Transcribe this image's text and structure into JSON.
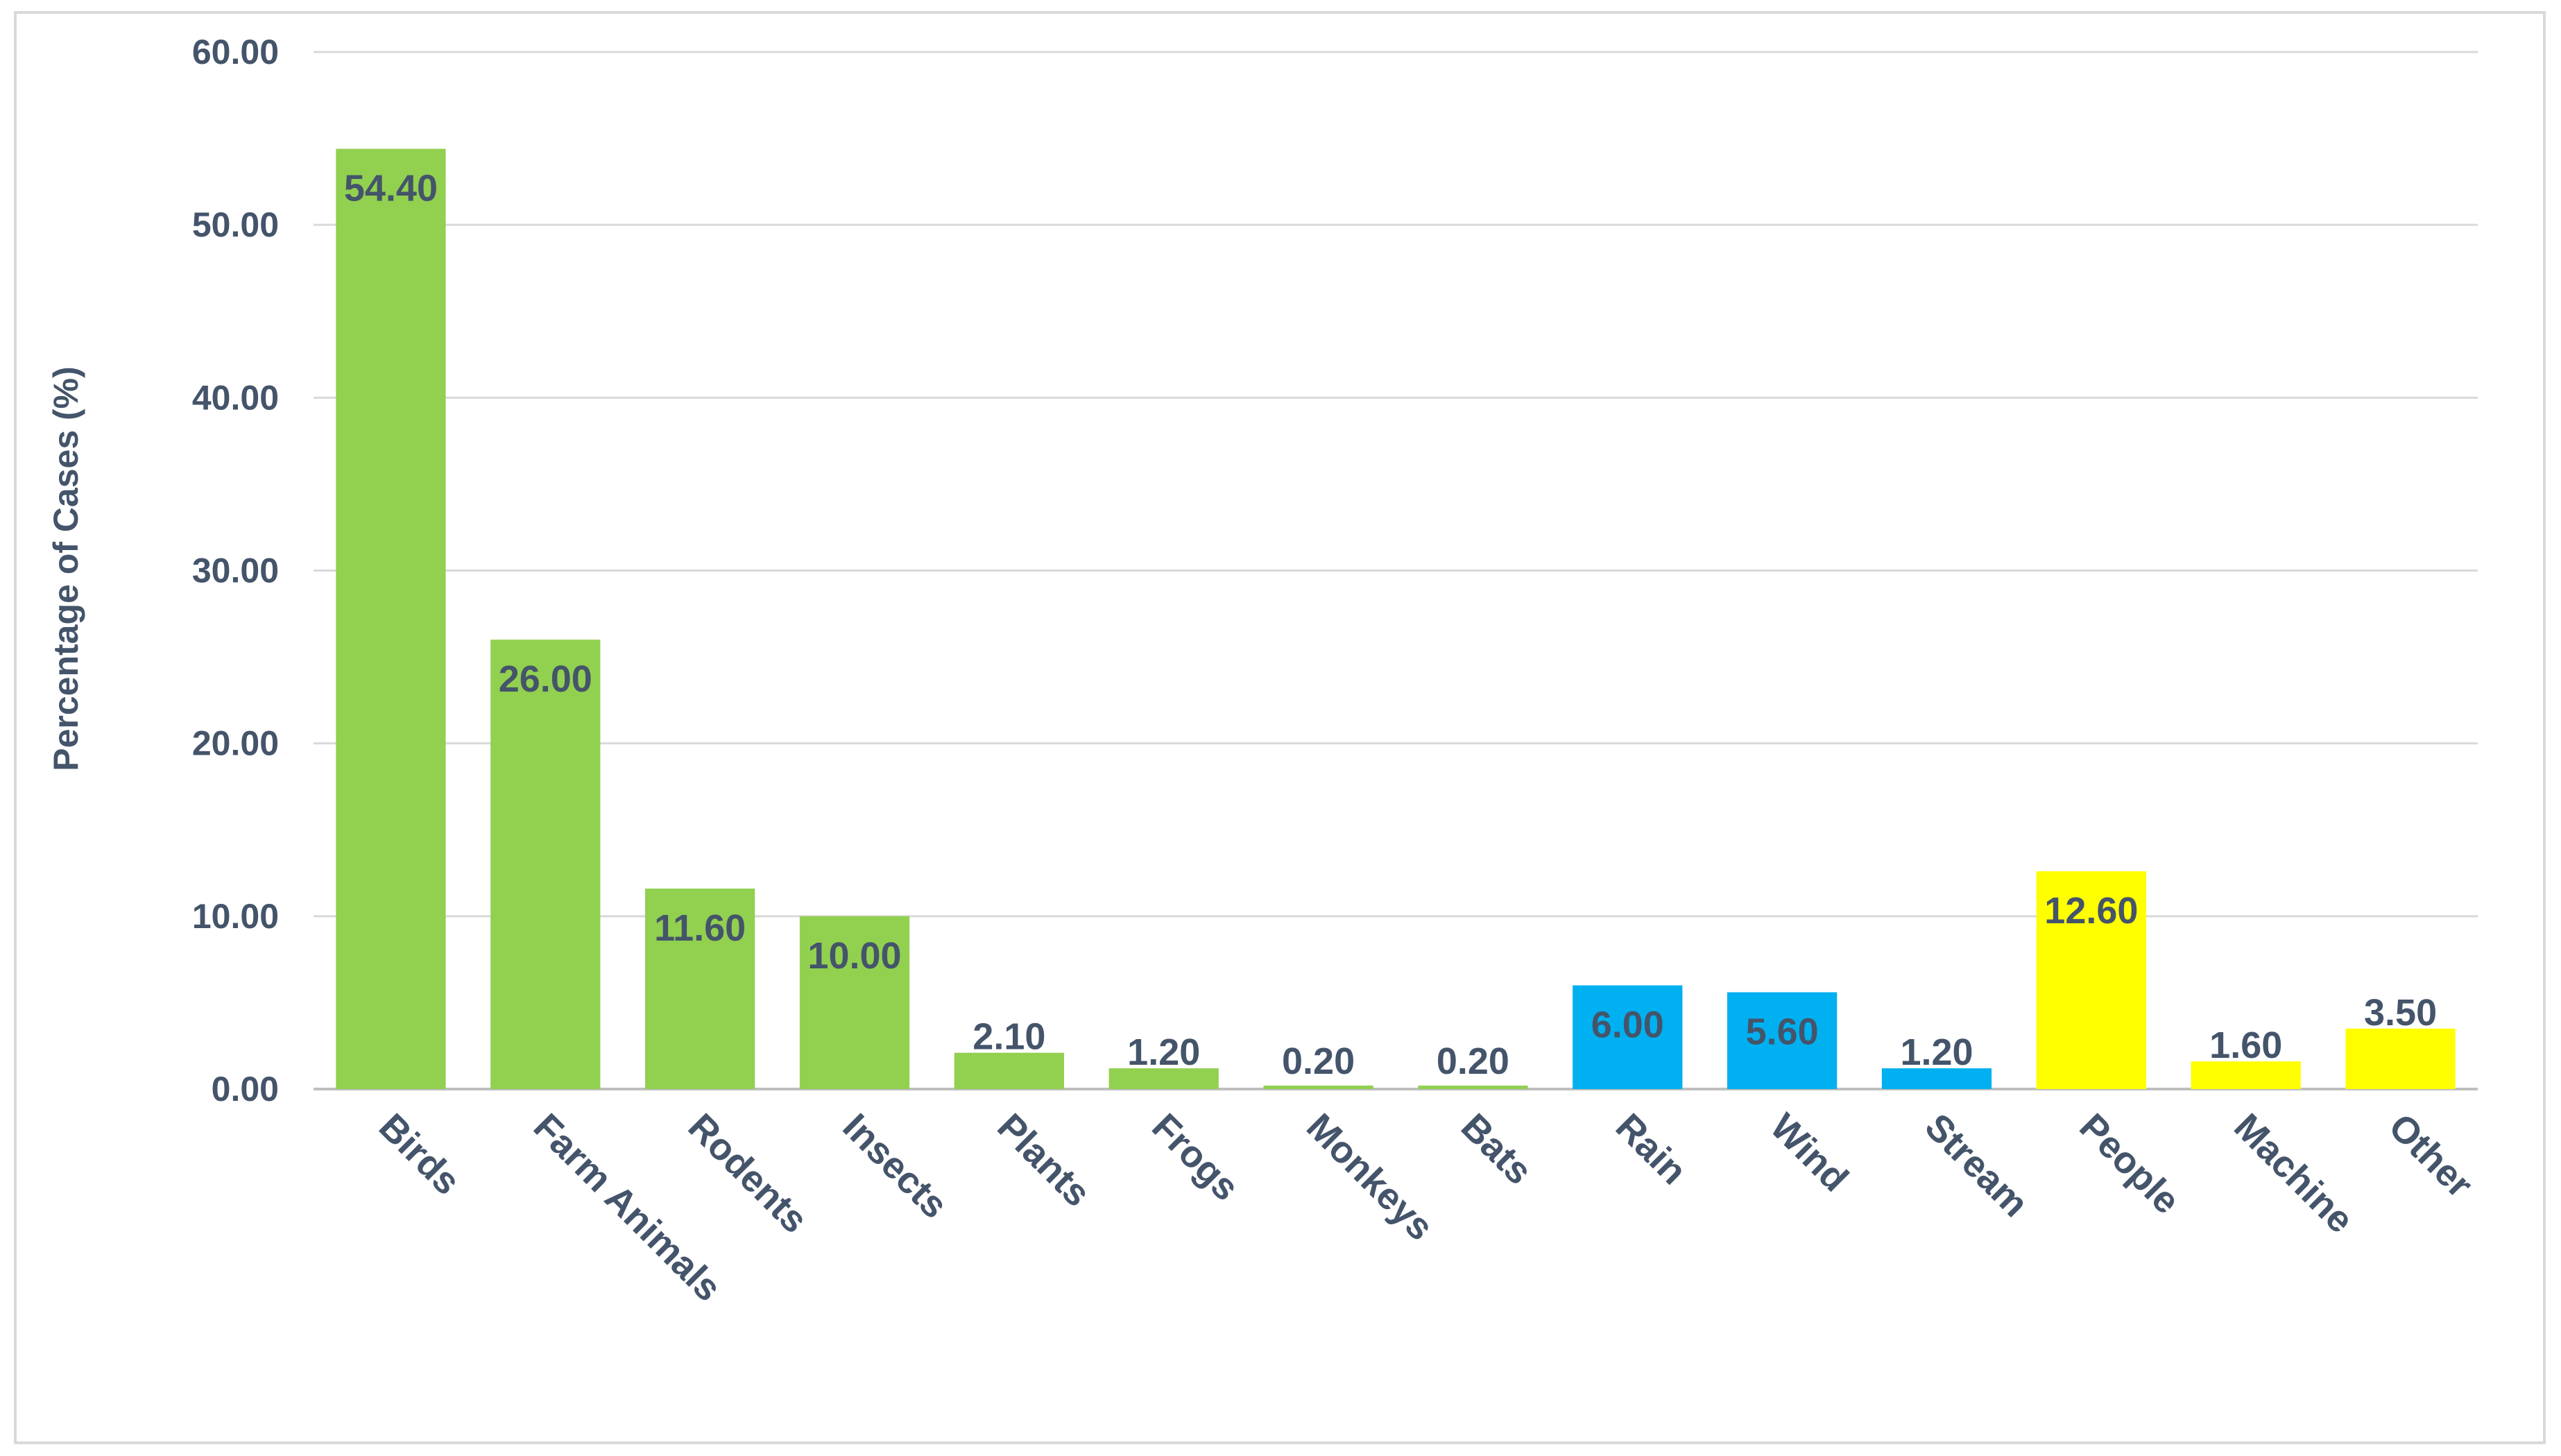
{
  "chart_data": {
    "type": "bar",
    "title": "",
    "xlabel": "",
    "ylabel": "Percentage of Cases (%)",
    "ylim": [
      0,
      60
    ],
    "yticks": [
      0,
      10,
      20,
      30,
      40,
      50,
      60
    ],
    "ytick_labels": [
      "0.00",
      "10.00",
      "20.00",
      "30.00",
      "40.00",
      "50.00",
      "60.00"
    ],
    "grid": true,
    "legend": "none",
    "categories": [
      "Birds",
      "Farm Animals",
      "Rodents",
      "Insects",
      "Plants",
      "Frogs",
      "Monkeys",
      "Bats",
      "Rain",
      "Wind",
      "Stream",
      "People",
      "Machine",
      "Other"
    ],
    "values": [
      54.4,
      26.0,
      11.6,
      10.0,
      2.1,
      1.2,
      0.2,
      0.2,
      6.0,
      5.6,
      1.2,
      12.6,
      1.6,
      3.5
    ],
    "value_labels": [
      "54.40",
      "26.00",
      "11.60",
      "10.00",
      "2.10",
      "1.20",
      "0.20",
      "0.20",
      "6.00",
      "5.60",
      "1.20",
      "12.60",
      "1.60",
      "3.50"
    ],
    "bar_colors": [
      "#92d050",
      "#92d050",
      "#92d050",
      "#92d050",
      "#92d050",
      "#92d050",
      "#92d050",
      "#92d050",
      "#00b0f0",
      "#00b0f0",
      "#00b0f0",
      "#ffff00",
      "#ffff00",
      "#ffff00"
    ]
  }
}
